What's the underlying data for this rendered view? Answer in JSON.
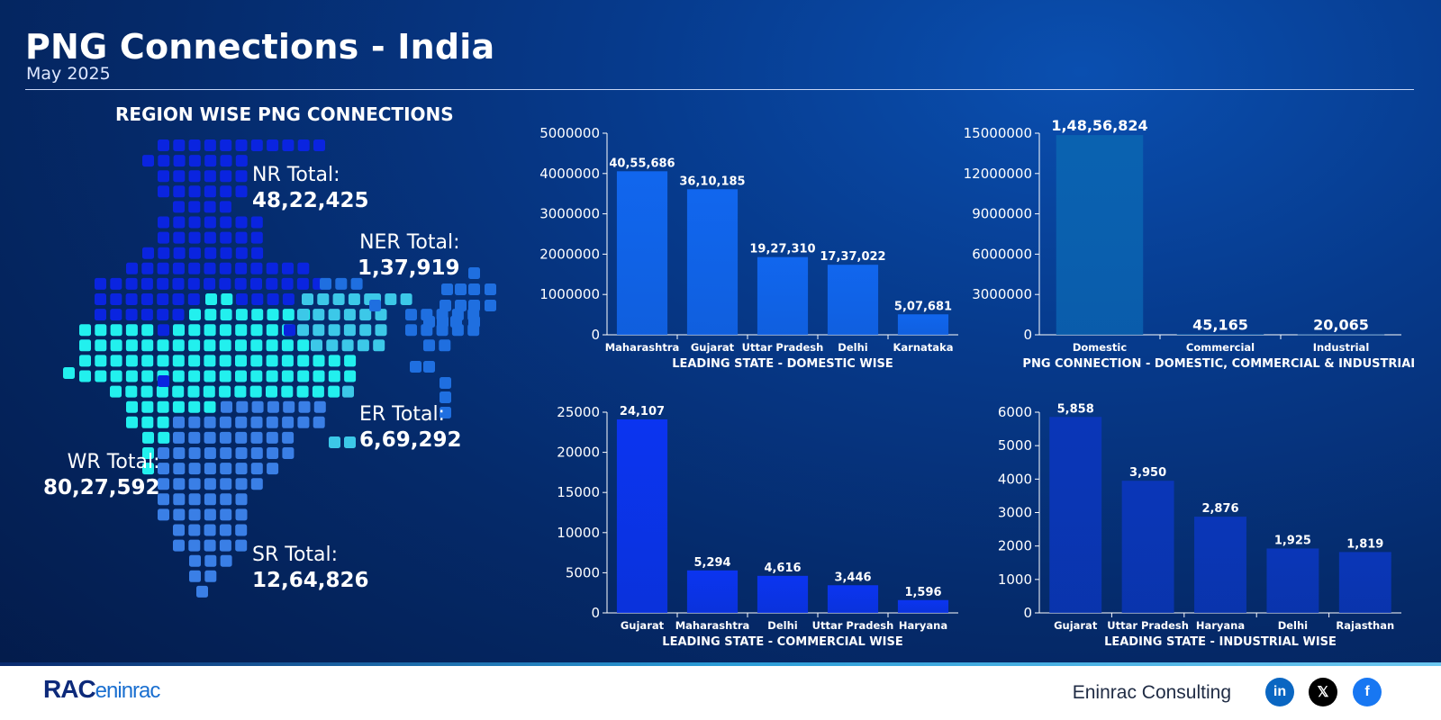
{
  "header": {
    "title": "PNG Connections - India",
    "subtitle": "May 2025"
  },
  "map": {
    "title": "REGION WISE PNG CONNECTIONS",
    "regions": [
      {
        "label": "NR Total:",
        "value": "48,22,425",
        "color": "#0a24e0"
      },
      {
        "label": "NER Total:",
        "value": "1,37,919",
        "color": "#1f6fe0"
      },
      {
        "label": "ER Total:",
        "value": "6,69,292",
        "color": "#3cc8e8"
      },
      {
        "label": "WR Total:",
        "value": "80,27,592",
        "color": "#22f0ee"
      },
      {
        "label": "SR Total:",
        "value": "12,64,826",
        "color": "#3a7fe6"
      }
    ]
  },
  "chart_data": [
    {
      "type": "bar",
      "title": "LEADING STATE - DOMESTIC WISE",
      "categories": [
        "Maharashtra",
        "Gujarat",
        "Uttar Pradesh",
        "Delhi",
        "Karnataka"
      ],
      "values": [
        4055686,
        3610185,
        1927310,
        1737022,
        507681
      ],
      "data_labels": [
        "40,55,686",
        "36,10,185",
        "19,27,310",
        "17,37,022",
        "5,07,681"
      ],
      "ylim": [
        0,
        5000000
      ],
      "yticks": [
        "0",
        "1000000",
        "2000000",
        "3000000",
        "4000000",
        "5000000"
      ],
      "color": "#1166ee"
    },
    {
      "type": "bar",
      "title": "PNG CONNECTION -  DOMESTIC, COMMERCIAL & INDUSTRIAL",
      "categories": [
        "Domestic",
        "Commercial",
        "Industrial"
      ],
      "values": [
        14856824,
        45165,
        20065
      ],
      "data_labels": [
        "1,48,56,824",
        "45,165",
        "20,065"
      ],
      "ylim": [
        0,
        15000000
      ],
      "yticks": [
        "0",
        "3000000",
        "6000000",
        "9000000",
        "12000000",
        "15000000"
      ],
      "color": "#0a62b0"
    },
    {
      "type": "bar",
      "title": "LEADING STATE - COMMERCIAL WISE",
      "categories": [
        "Gujarat",
        "Maharashtra",
        "Delhi",
        "Uttar Pradesh",
        "Haryana"
      ],
      "values": [
        24107,
        5294,
        4616,
        3446,
        1596
      ],
      "data_labels": [
        "24,107",
        "5,294",
        "4,616",
        "3,446",
        "1,596"
      ],
      "ylim": [
        0,
        25000
      ],
      "yticks": [
        "0",
        "5000",
        "10000",
        "15000",
        "20000",
        "25000"
      ],
      "color": "#0b34f0"
    },
    {
      "type": "bar",
      "title": "LEADING STATE - INDUSTRIAL WISE",
      "categories": [
        "Gujarat",
        "Uttar Pradesh",
        "Haryana",
        "Delhi",
        "Rajasthan"
      ],
      "values": [
        5858,
        3950,
        2876,
        1925,
        1819
      ],
      "data_labels": [
        "5,858",
        "3,950",
        "2,876",
        "1,925",
        "1,819"
      ],
      "ylim": [
        0,
        6000
      ],
      "yticks": [
        "0",
        "1000",
        "2000",
        "3000",
        "4000",
        "5000",
        "6000"
      ],
      "color": "#0a36b8"
    }
  ],
  "footer": {
    "logo_main": "RAC",
    "logo_sub": "eninrac",
    "brand": "Eninrac Consulting",
    "social": [
      {
        "name": "linkedin-icon",
        "glyph": "in",
        "color": "#0a66c2"
      },
      {
        "name": "x-icon",
        "glyph": "𝕏",
        "color": "#000000"
      },
      {
        "name": "facebook-icon",
        "glyph": "f",
        "color": "#1877f2"
      }
    ]
  }
}
